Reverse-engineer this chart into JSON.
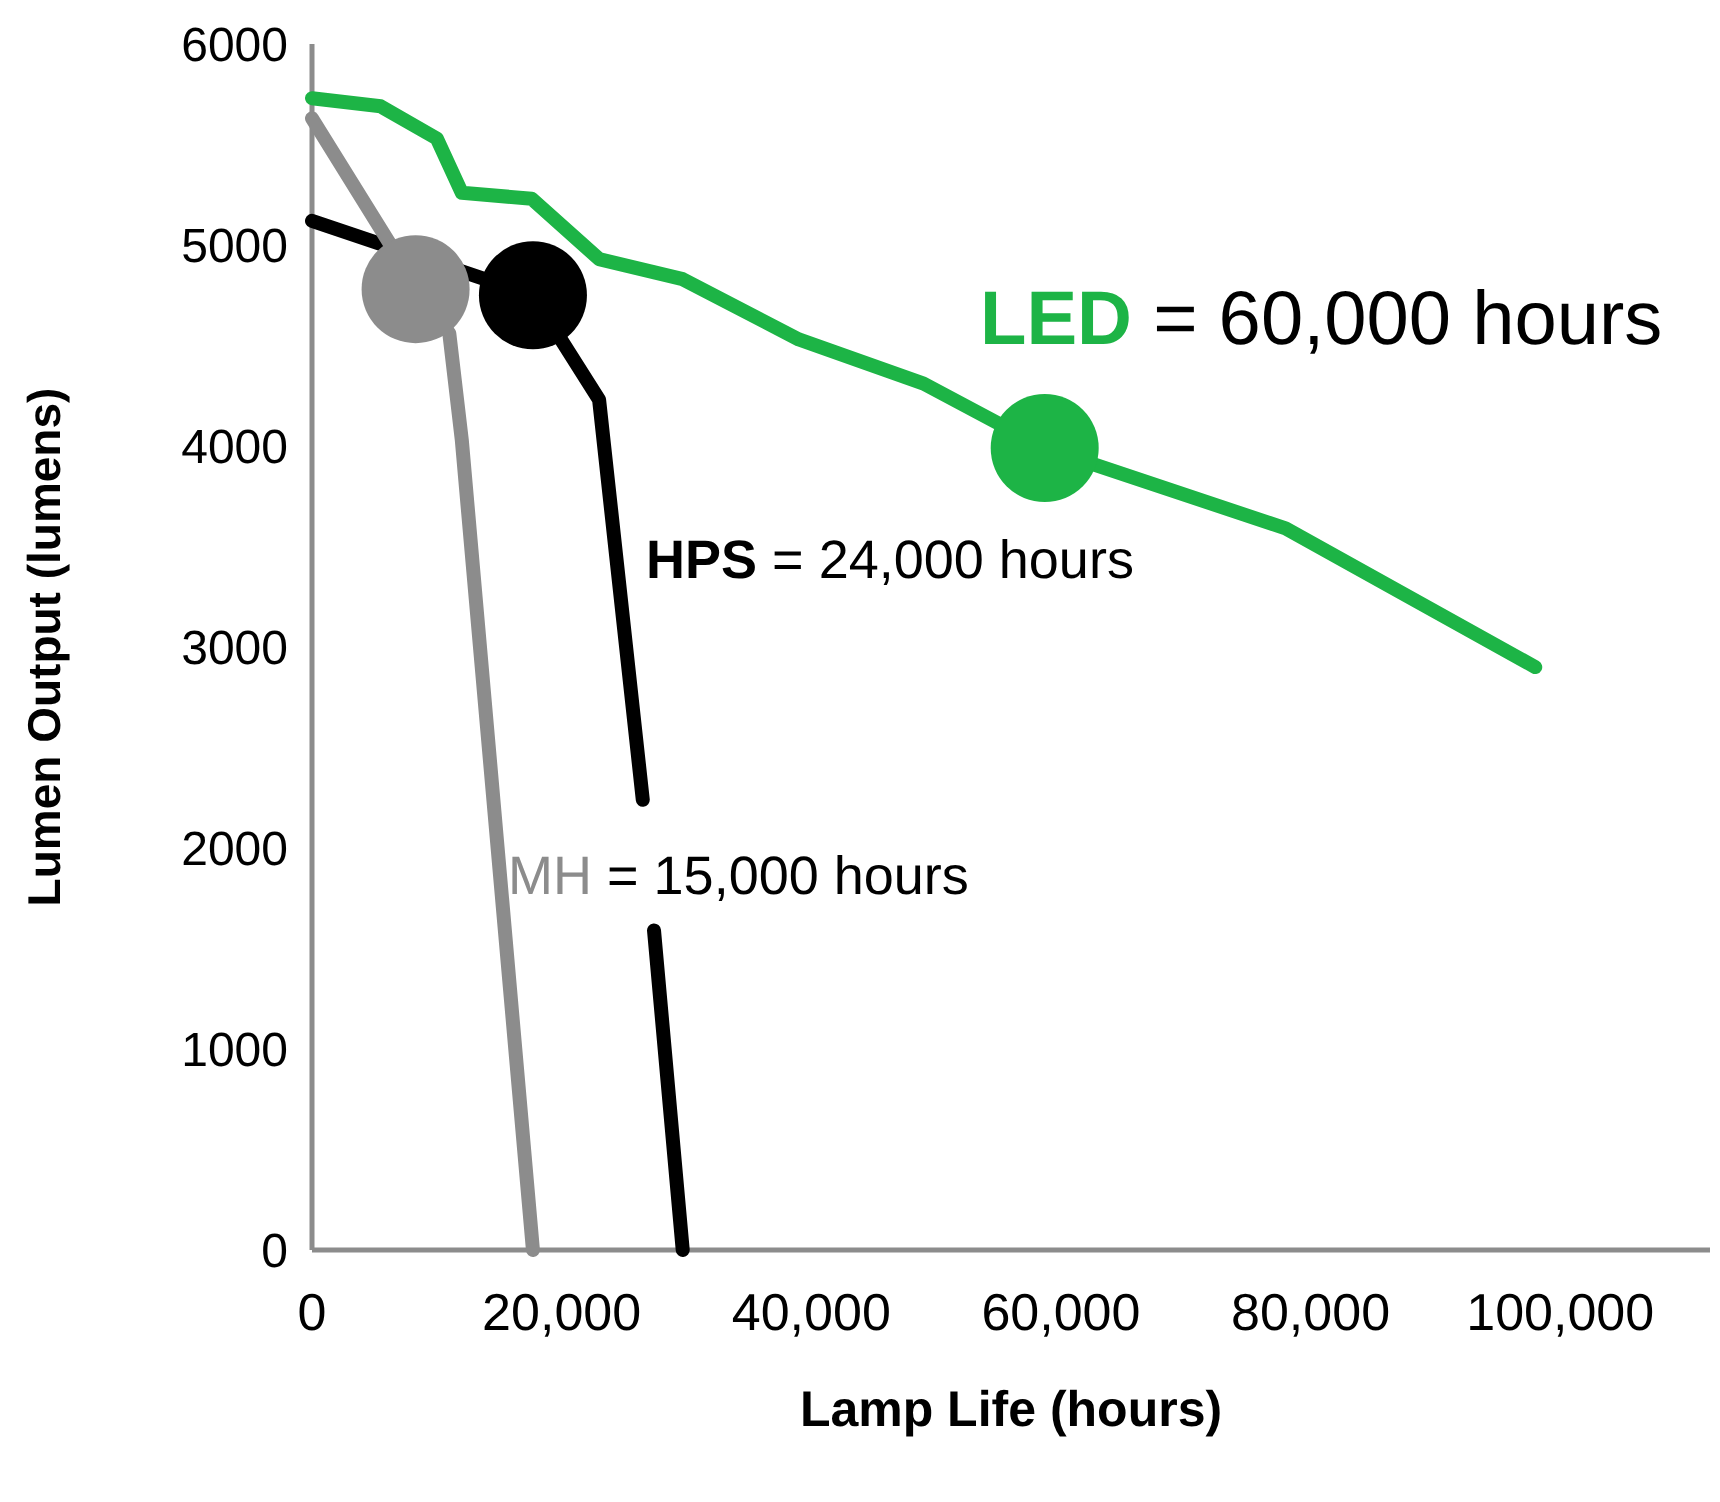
{
  "chart_data": {
    "type": "line",
    "xlabel": "Lamp Life (hours)",
    "ylabel": "Lumen Output (lumens)",
    "xlim": [
      0,
      112000
    ],
    "xticks": [
      {
        "value": 0,
        "label": "0"
      },
      {
        "value": 20000,
        "label": "20,000"
      },
      {
        "value": 40000,
        "label": "40,000"
      },
      {
        "value": 60000,
        "label": "60,000"
      },
      {
        "value": 80000,
        "label": "80,000"
      },
      {
        "value": 100000,
        "label": "100,000"
      }
    ],
    "ylim": [
      0,
      6000
    ],
    "yticks": [
      0,
      1000,
      2000,
      3000,
      4000,
      5000,
      6000
    ],
    "grid": false,
    "line_style": "solid",
    "annotations": [
      "= 60,000 hours",
      "= 24,000 hours",
      "= 15,000 hours"
    ],
    "series": [
      {
        "name": "LED",
        "color": "#1db446",
        "x": [
          0,
          5500,
          10000,
          12000,
          17600,
          23000,
          29700,
          39000,
          49000,
          58700,
          78000,
          98000
        ],
        "values": [
          5730,
          5690,
          5530,
          5260,
          5230,
          4930,
          4830,
          4530,
          4310,
          3990,
          3590,
          2900
        ]
      },
      {
        "name": "HPS",
        "color": "#000000",
        "x": [
          0,
          17700,
          23000,
          26500,
          27000,
          27400,
          29700
        ],
        "values": [
          5120,
          4750,
          4230,
          2240,
          null,
          1590,
          0
        ]
      },
      {
        "name": "MH",
        "color": "#8c8c8c",
        "x": [
          0,
          8300,
          11000,
          12000,
          17700
        ],
        "values": [
          5630,
          4800,
          4560,
          4030,
          0
        ]
      },
      {
        "type": "scatter",
        "marker": "circle",
        "color": "#8c8c8c",
        "x": [
          8300
        ],
        "values": [
          4780
        ]
      },
      {
        "type": "scatter",
        "marker": "circle",
        "color": "#000000",
        "x": [
          17700
        ],
        "values": [
          4750
        ]
      },
      {
        "type": "scatter",
        "marker": "circle",
        "color": "#1db446",
        "x": [
          58700
        ],
        "values": [
          3990
        ]
      }
    ]
  }
}
